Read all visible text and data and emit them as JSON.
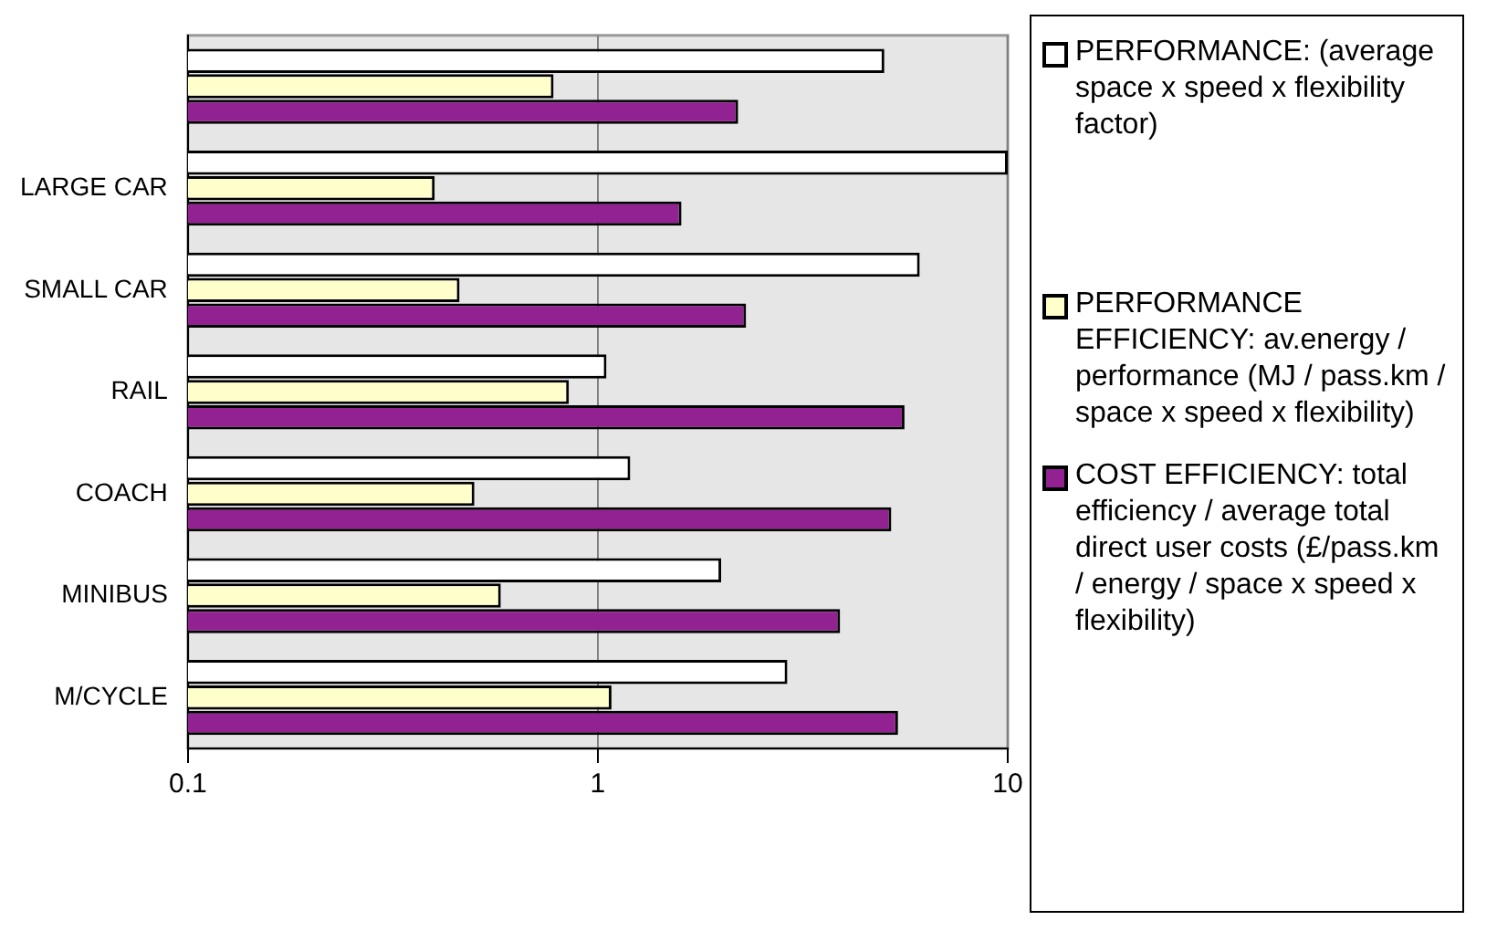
{
  "chart_data": {
    "type": "bar",
    "orientation": "horizontal",
    "log": "x",
    "categories": [
      null,
      "LARGE CAR",
      "SMALL CAR",
      "RAIL",
      "COACH",
      "MINIBUS",
      "M/CYCLE"
    ],
    "series": [
      {
        "name": "PERFORMANCE: (average space x speed x flexibility factor)",
        "color": "#ffffff",
        "values": [
          5.0,
          10,
          6.1,
          1.05,
          1.2,
          2.0,
          2.9
        ]
      },
      {
        "name": "PERFORMANCE EFFICIENCY: av.energy / performance  (MJ / pass.km / space x speed x flexibility)",
        "color": "#ffffcc",
        "values": [
          0.78,
          0.4,
          0.46,
          0.85,
          0.5,
          0.58,
          1.08
        ]
      },
      {
        "name": "COST EFFICIENCY: total efficiency / average total direct user costs   (£/pass.km / energy / space x speed x flexibility)",
        "color": "#922192",
        "values": [
          2.2,
          1.6,
          2.3,
          5.6,
          5.2,
          3.9,
          5.4
        ]
      }
    ],
    "xlim": [
      0.1,
      10
    ],
    "xticks": [
      0.1,
      1,
      10
    ],
    "grid": "x",
    "legend": "right"
  }
}
